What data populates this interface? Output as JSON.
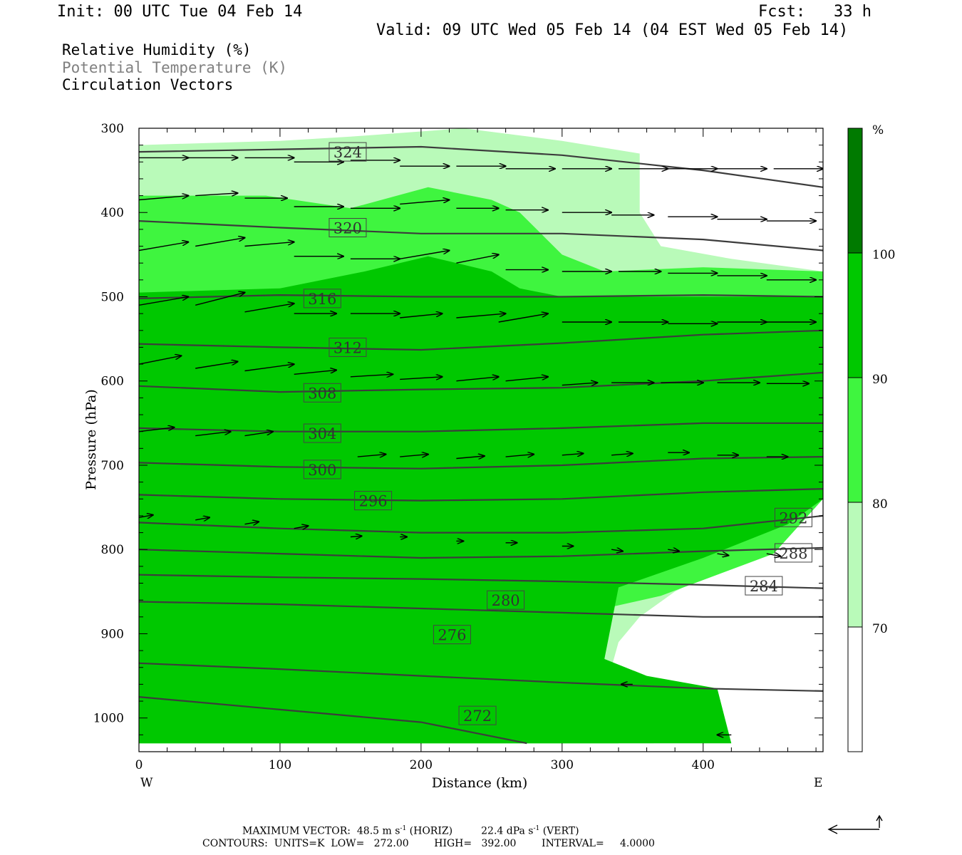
{
  "header": {
    "init": "Init: 00 UTC Tue 04 Feb 14",
    "fcst": "Fcst:   33 h",
    "valid": "Valid: 09 UTC Wed 05 Feb 14 (04 EST Wed 05 Feb 14)"
  },
  "legend": {
    "rh": "Relative Humidity (%)",
    "theta": "Potential Temperature (K)",
    "vectors": "Circulation Vectors"
  },
  "colorbar": {
    "unit": "%",
    "levels": [
      "70",
      "80",
      "90",
      "100"
    ],
    "colors": [
      "#ffffff",
      "#b9fab9",
      "#3ff53f",
      "#00c800",
      "#007a00"
    ]
  },
  "footer": {
    "line1_a": "MAXIMUM VECTOR:  48.5 m s",
    "line1_b": " (HORIZ)",
    "line1_c": "22.4 dPa s",
    "line1_d": " (VERT)",
    "sup": "-1",
    "line2": "CONTOURS:  UNITS=K  LOW=   272.00        HIGH=   392.00        INTERVAL=     4.0000"
  },
  "chart_data": {
    "type": "cross-section",
    "xlabel": "Distance (km)",
    "ylabel": "Pressure (hPa)",
    "xlim": [
      0,
      485
    ],
    "ylim": [
      1040,
      300
    ],
    "xticks": [
      0,
      100,
      200,
      300,
      400
    ],
    "yticks": [
      300,
      400,
      500,
      600,
      700,
      800,
      900,
      1000
    ],
    "west_label": "W",
    "east_label": "E",
    "fill_colors": {
      "c70": "#b9fab9",
      "c80": "#3ff53f",
      "c90": "#00c800",
      "c100": "#007a00"
    },
    "rh_70_region": [
      [
        0,
        320
      ],
      [
        100,
        315
      ],
      [
        150,
        310
      ],
      [
        230,
        300
      ],
      [
        300,
        315
      ],
      [
        355,
        330
      ],
      [
        355,
        400
      ],
      [
        370,
        440
      ],
      [
        420,
        455
      ],
      [
        485,
        470
      ],
      [
        485,
        710
      ],
      [
        450,
        790
      ],
      [
        380,
        850
      ],
      [
        355,
        880
      ],
      [
        340,
        910
      ],
      [
        335,
        940
      ],
      [
        350,
        1000
      ],
      [
        365,
        1030
      ],
      [
        0,
        1030
      ],
      [
        0,
        975
      ]
    ],
    "rh_80_region": [
      [
        0,
        380
      ],
      [
        90,
        380
      ],
      [
        150,
        395
      ],
      [
        205,
        370
      ],
      [
        250,
        385
      ],
      [
        270,
        400
      ],
      [
        300,
        450
      ],
      [
        330,
        470
      ],
      [
        400,
        465
      ],
      [
        485,
        470
      ],
      [
        485,
        740
      ],
      [
        450,
        805
      ],
      [
        370,
        855
      ],
      [
        330,
        870
      ],
      [
        330,
        930
      ],
      [
        340,
        1000
      ],
      [
        340,
        1030
      ],
      [
        0,
        1030
      ],
      [
        0,
        975
      ]
    ],
    "rh_90_region": [
      [
        0,
        495
      ],
      [
        100,
        490
      ],
      [
        160,
        470
      ],
      [
        205,
        452
      ],
      [
        250,
        470
      ],
      [
        270,
        490
      ],
      [
        300,
        500
      ],
      [
        485,
        500
      ],
      [
        485,
        740
      ],
      [
        460,
        770
      ],
      [
        400,
        810
      ],
      [
        340,
        845
      ],
      [
        330,
        930
      ],
      [
        360,
        950
      ],
      [
        410,
        965
      ],
      [
        420,
        1030
      ],
      [
        0,
        1030
      ],
      [
        0,
        975
      ]
    ],
    "rh_white_pocket": [
      [
        372,
        880
      ],
      [
        400,
        860
      ],
      [
        485,
        860
      ],
      [
        485,
        910
      ],
      [
        410,
        910
      ],
      [
        372,
        900
      ]
    ],
    "theta_contours": [
      {
        "value": "272",
        "points": [
          [
            0,
            975
          ],
          [
            100,
            990
          ],
          [
            200,
            1005
          ],
          [
            275,
            1030
          ]
        ],
        "label": [
          240,
          997
        ]
      },
      {
        "value": "276",
        "points": [
          [
            0,
            935
          ],
          [
            100,
            942
          ],
          [
            200,
            950
          ],
          [
            300,
            958
          ],
          [
            400,
            965
          ],
          [
            485,
            968
          ]
        ],
        "label": [
          222,
          901
        ]
      },
      {
        "value": "280",
        "points": [
          [
            0,
            862
          ],
          [
            100,
            865
          ],
          [
            200,
            870
          ],
          [
            300,
            875
          ],
          [
            400,
            880
          ],
          [
            485,
            880
          ]
        ],
        "label": [
          260,
          860
        ]
      },
      {
        "value": "284",
        "points": [
          [
            0,
            830
          ],
          [
            100,
            833
          ],
          [
            200,
            835
          ],
          [
            300,
            838
          ],
          [
            400,
            842
          ],
          [
            485,
            846
          ]
        ],
        "label": [
          443,
          843
        ]
      },
      {
        "value": "288",
        "points": [
          [
            0,
            800
          ],
          [
            100,
            805
          ],
          [
            200,
            810
          ],
          [
            300,
            808
          ],
          [
            400,
            802
          ],
          [
            485,
            798
          ]
        ],
        "label": [
          464,
          804
        ]
      },
      {
        "value": "292",
        "points": [
          [
            0,
            768
          ],
          [
            100,
            775
          ],
          [
            200,
            780
          ],
          [
            300,
            780
          ],
          [
            400,
            775
          ],
          [
            485,
            760
          ]
        ],
        "label": [
          464,
          762
        ]
      },
      {
        "value": "296",
        "points": [
          [
            0,
            735
          ],
          [
            100,
            740
          ],
          [
            200,
            742
          ],
          [
            300,
            740
          ],
          [
            400,
            732
          ],
          [
            485,
            728
          ]
        ],
        "label": [
          166,
          742
        ]
      },
      {
        "value": "300",
        "points": [
          [
            0,
            697
          ],
          [
            100,
            702
          ],
          [
            200,
            704
          ],
          [
            300,
            700
          ],
          [
            400,
            692
          ],
          [
            485,
            690
          ]
        ],
        "label": [
          130,
          705
        ]
      },
      {
        "value": "304",
        "points": [
          [
            0,
            656
          ],
          [
            100,
            660
          ],
          [
            200,
            660
          ],
          [
            300,
            656
          ],
          [
            400,
            650
          ],
          [
            485,
            650
          ]
        ],
        "label": [
          130,
          662
        ]
      },
      {
        "value": "308",
        "points": [
          [
            0,
            606
          ],
          [
            100,
            613
          ],
          [
            200,
            610
          ],
          [
            300,
            608
          ],
          [
            400,
            600
          ],
          [
            485,
            590
          ]
        ],
        "label": [
          130,
          614
        ]
      },
      {
        "value": "312",
        "points": [
          [
            0,
            556
          ],
          [
            100,
            560
          ],
          [
            200,
            563
          ],
          [
            300,
            555
          ],
          [
            400,
            545
          ],
          [
            485,
            540
          ]
        ],
        "label": [
          148,
          560
        ]
      },
      {
        "value": "316",
        "points": [
          [
            0,
            502
          ],
          [
            100,
            498
          ],
          [
            200,
            500
          ],
          [
            300,
            500
          ],
          [
            400,
            498
          ],
          [
            485,
            500
          ]
        ],
        "label": [
          130,
          502
        ]
      },
      {
        "value": "320",
        "points": [
          [
            0,
            410
          ],
          [
            100,
            418
          ],
          [
            200,
            425
          ],
          [
            300,
            425
          ],
          [
            400,
            432
          ],
          [
            485,
            445
          ]
        ],
        "label": [
          148,
          418
        ]
      },
      {
        "value": "324",
        "points": [
          [
            0,
            328
          ],
          [
            100,
            325
          ],
          [
            200,
            322
          ],
          [
            300,
            332
          ],
          [
            400,
            350
          ],
          [
            485,
            370
          ]
        ],
        "label": [
          148,
          328
        ]
      }
    ],
    "vectors": [
      [
        0,
        335,
        35,
        0
      ],
      [
        35,
        335,
        35,
        0
      ],
      [
        75,
        335,
        35,
        0
      ],
      [
        110,
        340,
        35,
        0
      ],
      [
        150,
        338,
        35,
        0
      ],
      [
        185,
        345,
        35,
        0
      ],
      [
        225,
        345,
        35,
        0
      ],
      [
        260,
        348,
        35,
        0
      ],
      [
        300,
        348,
        35,
        0
      ],
      [
        340,
        348,
        35,
        0
      ],
      [
        375,
        348,
        35,
        0
      ],
      [
        410,
        348,
        35,
        0
      ],
      [
        450,
        348,
        35,
        0
      ],
      [
        0,
        385,
        35,
        -5
      ],
      [
        40,
        380,
        30,
        -3
      ],
      [
        75,
        383,
        30,
        0
      ],
      [
        110,
        393,
        35,
        0
      ],
      [
        150,
        395,
        35,
        0
      ],
      [
        185,
        390,
        35,
        -5
      ],
      [
        225,
        395,
        30,
        0
      ],
      [
        260,
        397,
        30,
        0
      ],
      [
        300,
        400,
        35,
        0
      ],
      [
        335,
        403,
        30,
        0
      ],
      [
        375,
        405,
        35,
        0
      ],
      [
        410,
        408,
        35,
        0
      ],
      [
        445,
        410,
        35,
        0
      ],
      [
        0,
        445,
        35,
        -10
      ],
      [
        40,
        440,
        35,
        -10
      ],
      [
        75,
        440,
        35,
        -5
      ],
      [
        110,
        452,
        35,
        0
      ],
      [
        150,
        455,
        35,
        0
      ],
      [
        185,
        455,
        35,
        -10
      ],
      [
        225,
        460,
        30,
        -10
      ],
      [
        260,
        468,
        30,
        0
      ],
      [
        300,
        470,
        35,
        0
      ],
      [
        340,
        470,
        30,
        0
      ],
      [
        375,
        472,
        35,
        0
      ],
      [
        410,
        475,
        35,
        0
      ],
      [
        445,
        480,
        35,
        0
      ],
      [
        0,
        510,
        35,
        -10
      ],
      [
        40,
        510,
        35,
        -15
      ],
      [
        75,
        518,
        35,
        -10
      ],
      [
        110,
        520,
        30,
        0
      ],
      [
        150,
        520,
        35,
        0
      ],
      [
        185,
        525,
        30,
        -5
      ],
      [
        225,
        525,
        35,
        -5
      ],
      [
        255,
        530,
        35,
        -10
      ],
      [
        300,
        530,
        35,
        0
      ],
      [
        340,
        530,
        35,
        0
      ],
      [
        375,
        532,
        35,
        0
      ],
      [
        410,
        530,
        35,
        0
      ],
      [
        445,
        530,
        35,
        0
      ],
      [
        0,
        580,
        30,
        -10
      ],
      [
        40,
        585,
        30,
        -8
      ],
      [
        75,
        588,
        35,
        -8
      ],
      [
        110,
        592,
        30,
        -5
      ],
      [
        150,
        595,
        30,
        -3
      ],
      [
        185,
        598,
        30,
        -3
      ],
      [
        225,
        600,
        30,
        -5
      ],
      [
        260,
        600,
        30,
        -5
      ],
      [
        300,
        605,
        25,
        -3
      ],
      [
        335,
        602,
        30,
        0
      ],
      [
        370,
        602,
        30,
        0
      ],
      [
        410,
        602,
        30,
        0
      ],
      [
        445,
        603,
        30,
        0
      ],
      [
        0,
        660,
        25,
        -5
      ],
      [
        40,
        665,
        25,
        -5
      ],
      [
        75,
        665,
        20,
        -5
      ],
      [
        155,
        690,
        20,
        -3
      ],
      [
        185,
        690,
        20,
        -3
      ],
      [
        225,
        692,
        20,
        -3
      ],
      [
        260,
        690,
        20,
        -3
      ],
      [
        300,
        688,
        15,
        -2
      ],
      [
        335,
        688,
        15,
        -2
      ],
      [
        375,
        685,
        15,
        0
      ],
      [
        410,
        688,
        15,
        0
      ],
      [
        445,
        690,
        15,
        0
      ],
      [
        0,
        762,
        10,
        -3
      ],
      [
        40,
        765,
        10,
        -3
      ],
      [
        75,
        770,
        10,
        -3
      ],
      [
        110,
        775,
        10,
        -3
      ],
      [
        150,
        785,
        8,
        -1
      ],
      [
        185,
        785,
        5,
        0
      ],
      [
        225,
        790,
        5,
        0
      ],
      [
        260,
        792,
        8,
        0
      ],
      [
        300,
        796,
        8,
        0
      ],
      [
        335,
        800,
        8,
        2
      ],
      [
        375,
        800,
        8,
        2
      ],
      [
        410,
        805,
        8,
        2
      ],
      [
        445,
        805,
        10,
        3
      ],
      [
        350,
        960,
        -8,
        0
      ],
      [
        420,
        1020,
        -10,
        0
      ]
    ]
  }
}
